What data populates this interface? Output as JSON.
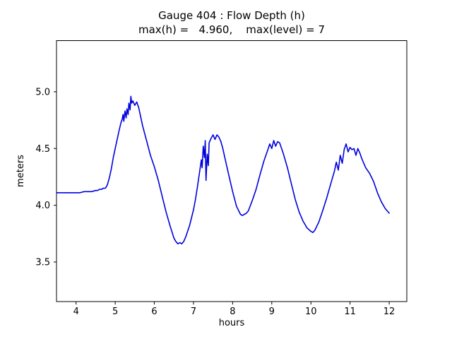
{
  "title": {
    "line1": "Gauge 404 : Flow Depth (h)",
    "line2": "max(h) =   4.960,    max(level) = 7"
  },
  "chart_data": {
    "type": "line",
    "title": "Gauge 404 : Flow Depth (h)",
    "subtitle": "max(h) =   4.960,    max(level) = 7",
    "xlabel": "hours",
    "ylabel": "meters",
    "line_color": "#0000dd",
    "axis_color": "#000000",
    "xlim": [
      3.5,
      12.45
    ],
    "ylim": [
      3.15,
      5.45
    ],
    "xticks": [
      4,
      5,
      6,
      7,
      8,
      9,
      10,
      11,
      12
    ],
    "xtick_labels": [
      "4",
      "5",
      "6",
      "7",
      "8",
      "9",
      "10",
      "11",
      "12"
    ],
    "yticks": [
      3.5,
      4.0,
      4.5,
      5.0
    ],
    "ytick_labels": [
      "3.5",
      "4.0",
      "4.5",
      "5.0"
    ],
    "max_h": 4.96,
    "max_level": 7,
    "x": [
      3.5,
      3.6,
      3.7,
      3.8,
      3.9,
      4.0,
      4.1,
      4.2,
      4.3,
      4.4,
      4.5,
      4.55,
      4.6,
      4.65,
      4.7,
      4.75,
      4.8,
      4.85,
      4.9,
      4.95,
      5.0,
      5.05,
      5.1,
      5.15,
      5.18,
      5.2,
      5.22,
      5.25,
      5.28,
      5.3,
      5.33,
      5.35,
      5.38,
      5.4,
      5.42,
      5.45,
      5.5,
      5.55,
      5.6,
      5.65,
      5.7,
      5.8,
      5.9,
      6.0,
      6.1,
      6.2,
      6.3,
      6.4,
      6.5,
      6.55,
      6.6,
      6.65,
      6.7,
      6.75,
      6.8,
      6.9,
      7.0,
      7.05,
      7.1,
      7.15,
      7.2,
      7.22,
      7.25,
      7.28,
      7.3,
      7.32,
      7.35,
      7.38,
      7.4,
      7.45,
      7.5,
      7.55,
      7.6,
      7.65,
      7.7,
      7.75,
      7.8,
      7.9,
      8.0,
      8.1,
      8.2,
      8.25,
      8.3,
      8.35,
      8.4,
      8.5,
      8.6,
      8.7,
      8.8,
      8.9,
      8.95,
      9.0,
      9.05,
      9.1,
      9.15,
      9.2,
      9.25,
      9.3,
      9.4,
      9.5,
      9.6,
      9.7,
      9.8,
      9.9,
      10.0,
      10.05,
      10.1,
      10.2,
      10.3,
      10.4,
      10.5,
      10.6,
      10.65,
      10.7,
      10.75,
      10.8,
      10.85,
      10.9,
      10.95,
      11.0,
      11.05,
      11.1,
      11.15,
      11.2,
      11.25,
      11.3,
      11.4,
      11.5,
      11.6,
      11.7,
      11.8,
      11.9,
      12.0
    ],
    "y": [
      4.11,
      4.11,
      4.11,
      4.11,
      4.11,
      4.11,
      4.11,
      4.12,
      4.12,
      4.12,
      4.13,
      4.13,
      4.14,
      4.14,
      4.15,
      4.15,
      4.18,
      4.24,
      4.32,
      4.42,
      4.5,
      4.58,
      4.66,
      4.73,
      4.76,
      4.8,
      4.74,
      4.83,
      4.77,
      4.85,
      4.8,
      4.9,
      4.84,
      4.96,
      4.9,
      4.92,
      4.88,
      4.91,
      4.86,
      4.78,
      4.7,
      4.57,
      4.44,
      4.34,
      4.22,
      4.08,
      3.94,
      3.82,
      3.71,
      3.68,
      3.66,
      3.67,
      3.66,
      3.68,
      3.72,
      3.82,
      3.96,
      4.05,
      4.16,
      4.28,
      4.4,
      4.33,
      4.52,
      4.42,
      4.57,
      4.22,
      4.45,
      4.35,
      4.55,
      4.59,
      4.62,
      4.58,
      4.62,
      4.6,
      4.56,
      4.5,
      4.42,
      4.27,
      4.12,
      3.99,
      3.92,
      3.91,
      3.92,
      3.93,
      3.95,
      4.04,
      4.14,
      4.27,
      4.39,
      4.49,
      4.54,
      4.5,
      4.57,
      4.52,
      4.56,
      4.55,
      4.5,
      4.45,
      4.33,
      4.19,
      4.05,
      3.94,
      3.86,
      3.8,
      3.77,
      3.76,
      3.78,
      3.85,
      3.95,
      4.06,
      4.18,
      4.3,
      4.38,
      4.31,
      4.44,
      4.37,
      4.49,
      4.54,
      4.47,
      4.51,
      4.49,
      4.5,
      4.44,
      4.5,
      4.46,
      4.41,
      4.33,
      4.28,
      4.21,
      4.11,
      4.03,
      3.97,
      3.93
    ]
  }
}
